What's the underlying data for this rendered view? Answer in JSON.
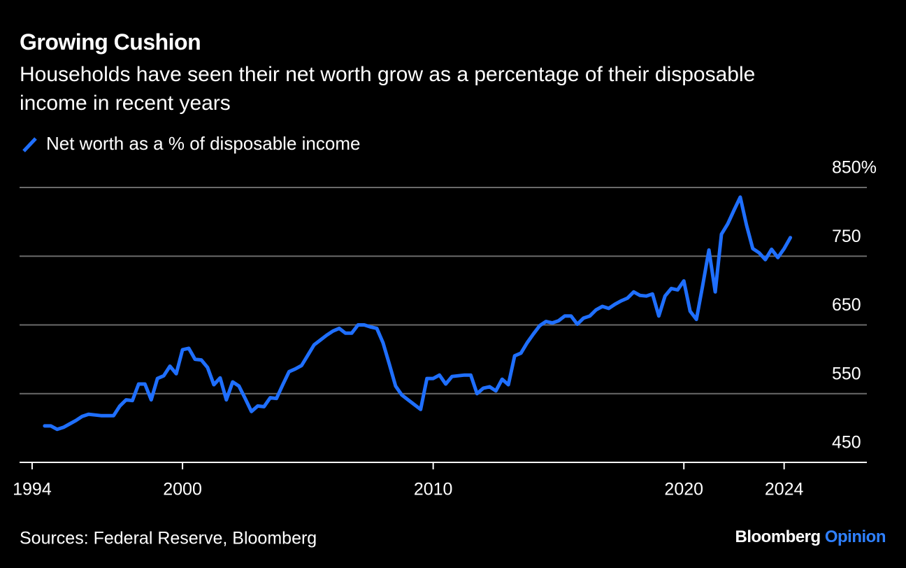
{
  "chart_data": {
    "type": "line",
    "title": "Growing Cushion",
    "subtitle": "Households have seen their net worth grow as a percentage of their disposable income in recent years",
    "source": "Sources: Federal Reserve, Bloomberg",
    "brand": {
      "name": "Bloomberg",
      "suffix": "Opinion"
    },
    "xlim": [
      1993.5,
      2027.3
    ],
    "xticks": [
      1994,
      2000,
      2010,
      2020,
      2024
    ],
    "ylim": [
      450,
      850
    ],
    "yticks": [
      450,
      550,
      650,
      750,
      {
        "value": 850,
        "label": "850%"
      }
    ],
    "grid": true,
    "x": [
      1994.5,
      1994.75,
      1995,
      1995.25,
      1995.5,
      1995.75,
      1996,
      1996.25,
      1996.5,
      1996.75,
      1997,
      1997.25,
      1997.5,
      1997.75,
      1998,
      1998.25,
      1998.5,
      1998.75,
      1999,
      1999.25,
      1999.5,
      1999.75,
      2000,
      2000.25,
      2000.5,
      2000.75,
      2001,
      2001.25,
      2001.5,
      2001.75,
      2002,
      2002.25,
      2002.5,
      2002.75,
      2003,
      2003.25,
      2003.5,
      2003.75,
      2004,
      2004.25,
      2004.5,
      2004.75,
      2005,
      2005.25,
      2005.5,
      2005.75,
      2006,
      2006.25,
      2006.5,
      2006.75,
      2007,
      2007.25,
      2007.5,
      2007.75,
      2008,
      2008.25,
      2008.5,
      2008.75,
      2009,
      2009.25,
      2009.5,
      2009.75,
      2010,
      2010.25,
      2010.5,
      2010.75,
      2011,
      2011.25,
      2011.5,
      2011.75,
      2012,
      2012.25,
      2012.5,
      2012.75,
      2013,
      2013.25,
      2013.5,
      2013.75,
      2014,
      2014.25,
      2014.5,
      2014.75,
      2015,
      2015.25,
      2015.5,
      2015.75,
      2016,
      2016.25,
      2016.5,
      2016.75,
      2017,
      2017.25,
      2017.5,
      2017.75,
      2018,
      2018.25,
      2018.5,
      2018.75,
      2019,
      2019.25,
      2019.5,
      2019.75,
      2020,
      2020.25,
      2020.5,
      2020.75,
      2021,
      2021.25,
      2021.5,
      2021.75,
      2022,
      2022.25,
      2022.5,
      2022.75,
      2023,
      2023.25,
      2023.5,
      2023.75,
      2024,
      2024.25
    ],
    "series": [
      {
        "name": "Net worth as a % of disposable income",
        "color": "#1f6fff",
        "values": [
          503,
          503,
          498,
          501,
          506,
          511,
          517,
          520,
          519,
          518,
          518,
          518,
          532,
          541,
          540,
          564,
          564,
          541,
          572,
          576,
          590,
          579,
          614,
          616,
          600,
          599,
          588,
          563,
          573,
          541,
          567,
          561,
          543,
          524,
          532,
          531,
          544,
          543,
          563,
          582,
          586,
          591,
          606,
          621,
          628,
          635,
          641,
          645,
          638,
          638,
          650,
          650,
          647,
          645,
          624,
          593,
          561,
          548,
          541,
          534,
          527,
          572,
          572,
          577,
          564,
          575,
          576,
          577,
          577,
          550,
          558,
          560,
          554,
          571,
          563,
          605,
          609,
          624,
          637,
          649,
          655,
          653,
          656,
          663,
          663,
          651,
          660,
          663,
          672,
          677,
          674,
          680,
          685,
          689,
          698,
          693,
          692,
          695,
          663,
          692,
          703,
          701,
          714,
          670,
          658,
          707,
          759,
          698,
          782,
          797,
          817,
          836,
          795,
          761,
          755,
          745,
          760,
          748,
          761,
          777
        ]
      }
    ]
  }
}
